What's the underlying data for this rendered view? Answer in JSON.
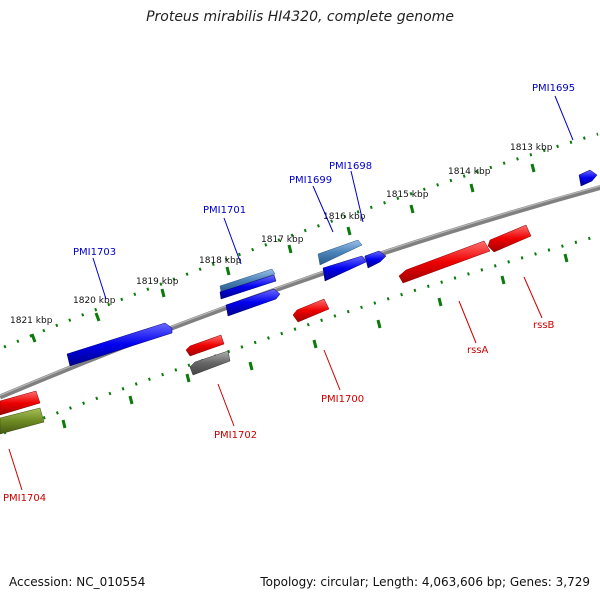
{
  "title": "Proteus mirabilis HI4320, complete genome",
  "footer": {
    "accession": "Accession: NC_010554",
    "stats": "Topology: circular; Length: 4,063,606 bp; Genes: 3,729"
  },
  "ticks": [
    "1821 kbp",
    "1820 kbp",
    "1819 kbp",
    "1818 kbp",
    "1817 kbp",
    "1816 kbp",
    "1815 kbp",
    "1814 kbp",
    "1813 kbp"
  ],
  "genes_forward": [
    "PMI1695",
    "PMI1698",
    "PMI1699",
    "PMI1701",
    "PMI1703"
  ],
  "genes_reverse": [
    "rssB",
    "rssA",
    "PMI1700",
    "PMI1702",
    "PMI1704"
  ],
  "colors": {
    "forward_gene": "#0000ee",
    "forward_gene_alt": "#4a82b8",
    "reverse_gene": "#ee0000",
    "reverse_gene_grey": "#666666",
    "reverse_gene_olive": "#6e8a23",
    "backbone": "#808080",
    "tick": "#0a7a0a",
    "forward_label": "#0000cc",
    "reverse_label": "#cc0000"
  }
}
